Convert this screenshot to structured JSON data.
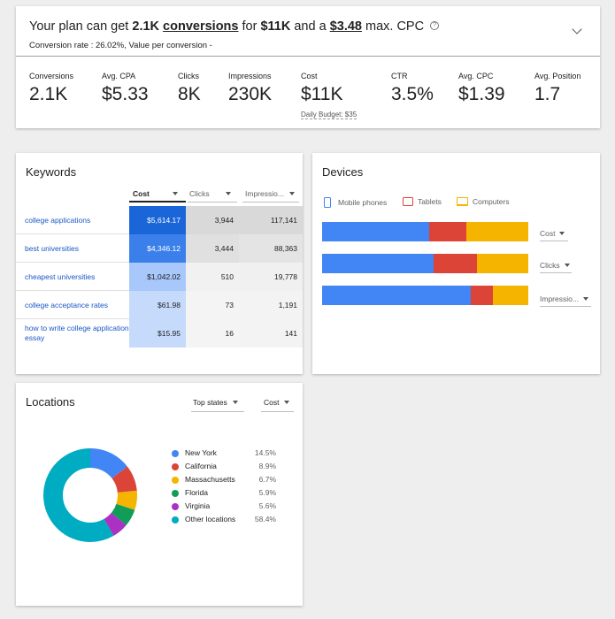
{
  "plan": {
    "headline_prefix": "Your plan can get",
    "headline_conv_value": "2.1K",
    "headline_conv_word": "conversions",
    "headline_for": "for",
    "headline_budget": "$11K",
    "headline_and_a": "and a",
    "headline_cpc": "$3.48",
    "headline_suffix": "max. CPC",
    "help_glyph": "?",
    "subline": "Conversion rate : 26.02%, Value per conversion -",
    "metrics": [
      {
        "label": "Conversions",
        "value": "2.1K"
      },
      {
        "label": "Avg. CPA",
        "value": "$5.33"
      },
      {
        "label": "Clicks",
        "value": "8K"
      },
      {
        "label": "Impressions",
        "value": "230K"
      },
      {
        "label": "Cost",
        "value": "$11K",
        "note": "Daily Budget: $35"
      },
      {
        "label": "CTR",
        "value": "3.5%"
      },
      {
        "label": "Avg. CPC",
        "value": "$1.39"
      },
      {
        "label": "Avg. Position",
        "value": "1.7"
      }
    ]
  },
  "keywords": {
    "title": "Keywords",
    "columns": {
      "cost": "Cost",
      "clicks": "Clicks",
      "impressions": "Impressio..."
    },
    "rows": [
      {
        "keyword": "college applications",
        "cost": "$5,614.17",
        "clicks": "3,944",
        "impressions": "117,141"
      },
      {
        "keyword": "best universities",
        "cost": "$4,346.12",
        "clicks": "3,444",
        "impressions": "88,363"
      },
      {
        "keyword": "cheapest universities",
        "cost": "$1,042.02",
        "clicks": "510",
        "impressions": "19,778"
      },
      {
        "keyword": "college acceptance rates",
        "cost": "$61.98",
        "clicks": "73",
        "impressions": "1,191"
      },
      {
        "keyword": "how to write college application essay",
        "cost": "$15.95",
        "clicks": "16",
        "impressions": "141"
      }
    ],
    "heat_colors": {
      "cost": [
        "#1a66d8",
        "#3b80ea",
        "#a8c7fa",
        "#c6dafc",
        "#c6dafc"
      ],
      "clicks": [
        "#d9d9d9",
        "#e0e0e0",
        "#f1f1f1",
        "#f4f4f4",
        "#f4f4f4"
      ],
      "impressions": [
        "#d9d9d9",
        "#e4e4e4",
        "#f0f0f0",
        "#f3f3f3",
        "#f3f3f3"
      ]
    }
  },
  "devices": {
    "title": "Devices",
    "legend": [
      {
        "label": "Mobile phones",
        "color": "#4285f4",
        "icon": "mobile-phone-icon"
      },
      {
        "label": "Tablets",
        "color": "#db4437",
        "icon": "tablet-icon"
      },
      {
        "label": "Computers",
        "color": "#f4b400",
        "icon": "computer-icon"
      }
    ],
    "bars": [
      {
        "metric": "Cost",
        "shares": [
          0.52,
          0.18,
          0.3
        ]
      },
      {
        "metric": "Clicks",
        "shares": [
          0.54,
          0.21,
          0.25
        ]
      },
      {
        "metric": "Impressio...",
        "shares": [
          0.72,
          0.11,
          0.17
        ]
      }
    ]
  },
  "locations": {
    "title": "Locations",
    "scope_select": "Top states",
    "metric_select": "Cost",
    "items": [
      {
        "name": "New York",
        "pct": "14.5%",
        "value": 14.5,
        "color": "#4285f4"
      },
      {
        "name": "California",
        "pct": "8.9%",
        "value": 8.9,
        "color": "#db4437"
      },
      {
        "name": "Massachusetts",
        "pct": "6.7%",
        "value": 6.7,
        "color": "#f4b400"
      },
      {
        "name": "Florida",
        "pct": "5.9%",
        "value": 5.9,
        "color": "#0f9d58"
      },
      {
        "name": "Virginia",
        "pct": "5.6%",
        "value": 5.6,
        "color": "#ab30c4"
      },
      {
        "name": "Other locations",
        "pct": "58.4%",
        "value": 58.4,
        "color": "#00acc1"
      }
    ]
  }
}
